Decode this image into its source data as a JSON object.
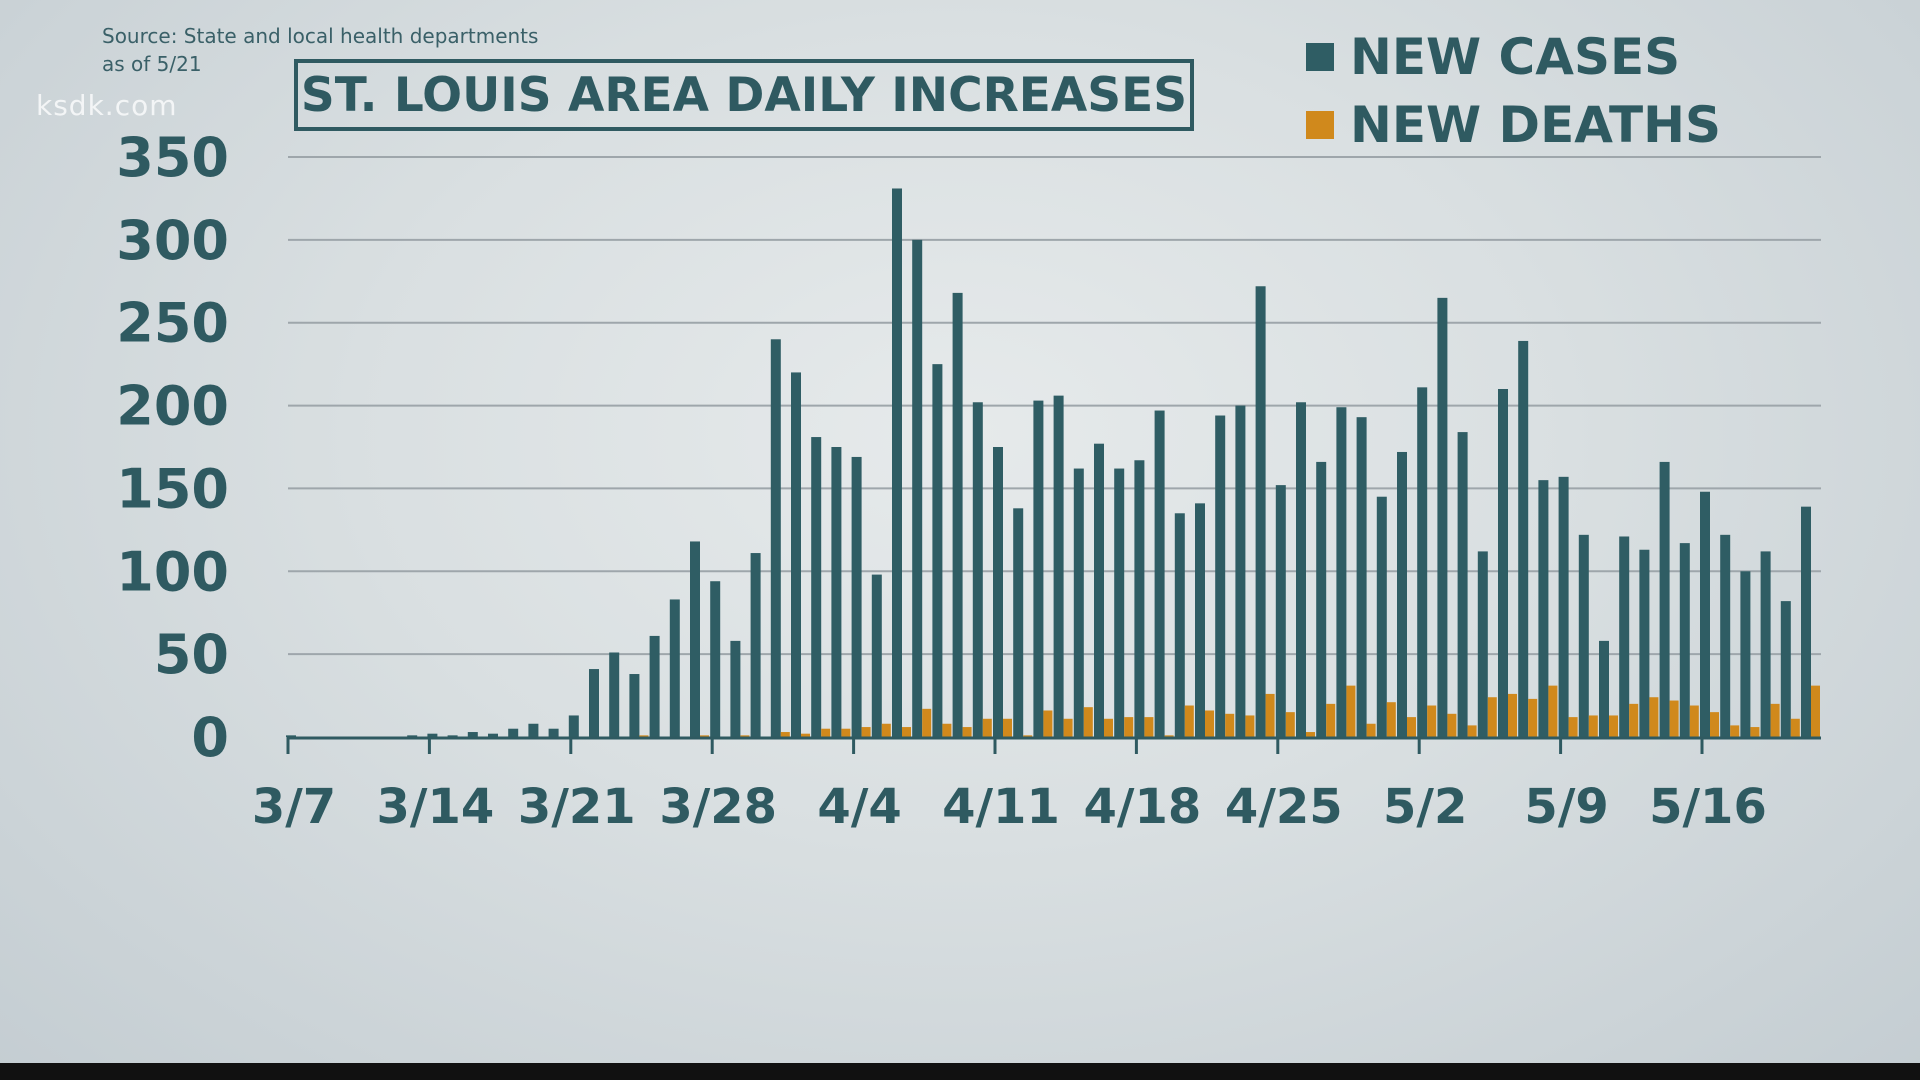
{
  "watermark": "ksdk.com",
  "source": {
    "line1": "Source: State and local health departments",
    "line2": "as of 5/21"
  },
  "chart_data": {
    "type": "bar",
    "title": "ST. LOUIS AREA DAILY INCREASES",
    "xlabel": "",
    "ylabel": "",
    "ylim": [
      0,
      350
    ],
    "yticks": [
      "0",
      "50",
      "100",
      "150",
      "200",
      "250",
      "300",
      "350"
    ],
    "xtick_labels": [
      "3/7",
      "3/14",
      "3/21",
      "3/28",
      "4/4",
      "4/11",
      "4/18",
      "4/25",
      "5/2",
      "5/9",
      "5/16"
    ],
    "start_date": "3/7",
    "end_date": "5/21",
    "grid": true,
    "legend_position": "top-right",
    "colors": {
      "cases": "#2f5d64",
      "deaths": "#d0891c"
    },
    "series": [
      {
        "name": "NEW CASES",
        "values": [
          1,
          0,
          0,
          0,
          0,
          0,
          1,
          2,
          1,
          3,
          2,
          5,
          8,
          5,
          13,
          41,
          51,
          38,
          61,
          83,
          118,
          94,
          58,
          111,
          240,
          220,
          181,
          175,
          169,
          98,
          331,
          300,
          225,
          268,
          202,
          175,
          138,
          203,
          206,
          162,
          177,
          162,
          167,
          197,
          135,
          141,
          194,
          200,
          272,
          152,
          202,
          166,
          199,
          193,
          145,
          172,
          211,
          265,
          184,
          112,
          210,
          239,
          155,
          157,
          122,
          58,
          121,
          113,
          166,
          117,
          148,
          122,
          100,
          112,
          82,
          139
        ]
      },
      {
        "name": "NEW DEATHS",
        "values": [
          0,
          0,
          0,
          0,
          0,
          0,
          0,
          0,
          0,
          0,
          0,
          0,
          0,
          0,
          0,
          0,
          0,
          1,
          0,
          0,
          1,
          0,
          1,
          0,
          3,
          2,
          5,
          5,
          6,
          8,
          6,
          17,
          8,
          6,
          11,
          11,
          1,
          16,
          11,
          18,
          11,
          12,
          12,
          1,
          19,
          16,
          14,
          13,
          26,
          15,
          3,
          20,
          31,
          8,
          21,
          12,
          19,
          14,
          7,
          24,
          26,
          23,
          31,
          12,
          13,
          13,
          20,
          24,
          22,
          19,
          15,
          7,
          6,
          20,
          11,
          31
        ]
      }
    ]
  }
}
